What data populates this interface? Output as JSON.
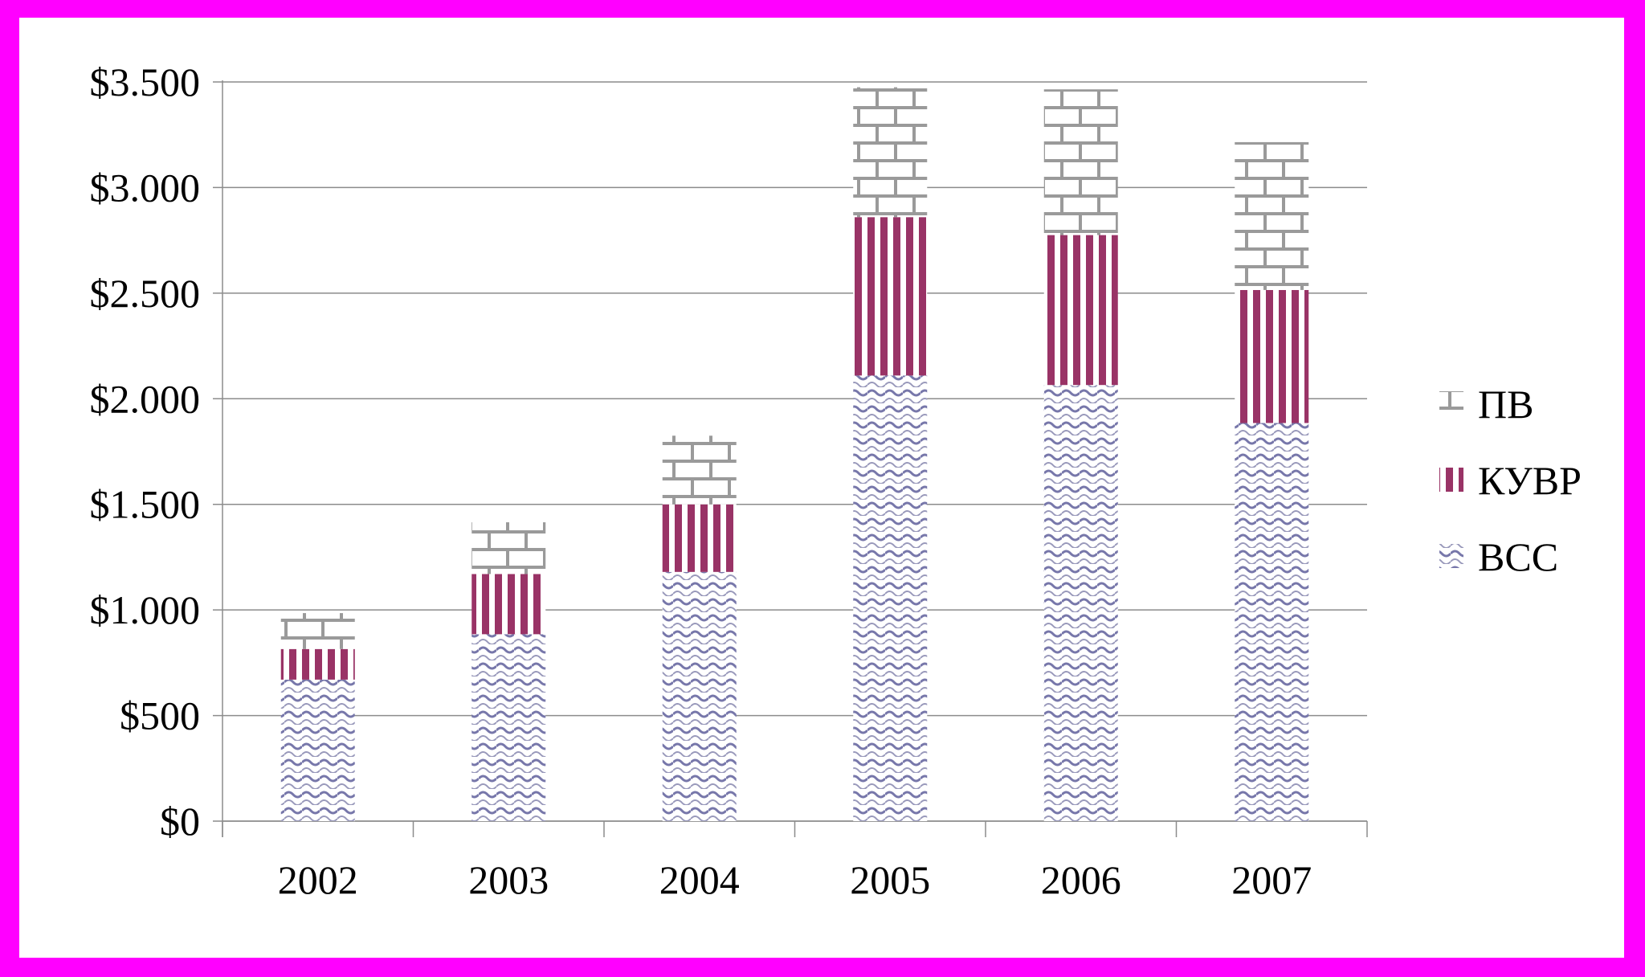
{
  "chart_data": {
    "type": "bar",
    "stacked": true,
    "categories": [
      "2002",
      "2003",
      "2004",
      "2005",
      "2006",
      "2007"
    ],
    "series": [
      {
        "name": "ВСС",
        "values": [
          670,
          885,
          1180,
          2110,
          2065,
          1885
        ],
        "color": "#7777aa",
        "pattern": "wave"
      },
      {
        "name": "КУВР",
        "values": [
          145,
          285,
          320,
          750,
          710,
          630
        ],
        "color": "#993366",
        "pattern": "vertical-stripes"
      },
      {
        "name": "ПВ",
        "values": [
          170,
          245,
          325,
          615,
          690,
          700
        ],
        "color": "#999999",
        "pattern": "brick"
      }
    ],
    "ylim": [
      0,
      3500
    ],
    "yticks": [
      0,
      500,
      1000,
      1500,
      2000,
      2500,
      3000,
      3500
    ],
    "ytick_labels": [
      "$0",
      "$500",
      "$1.000",
      "$1.500",
      "$2.000",
      "$2.500",
      "$3.000",
      "$3.500"
    ],
    "grid": true,
    "legend_position": "right",
    "legend_order": [
      "ПВ",
      "КУВР",
      "ВСС"
    ],
    "title": "",
    "xlabel": "",
    "ylabel": ""
  }
}
